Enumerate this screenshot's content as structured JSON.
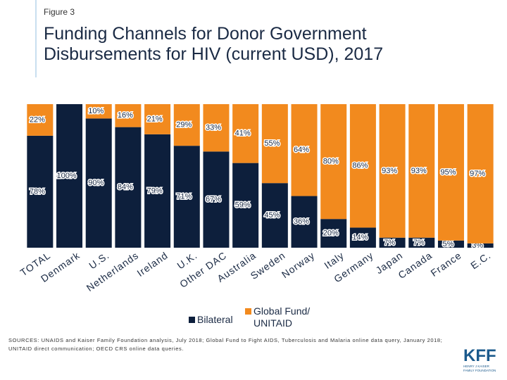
{
  "chart_data": {
    "type": "stacked_bar",
    "figure_label": "Figure 3",
    "title": "Funding Channels for Donor Government Disbursements for HIV (current USD), 2017",
    "categories": [
      "TOTAL",
      "Denmark",
      "U.S.",
      "Netherlands",
      "Ireland",
      "U.K.",
      "Other DAC",
      "Australia",
      "Sweden",
      "Norway",
      "Italy",
      "Germany",
      "Japan",
      "Canada",
      "France",
      "E.C."
    ],
    "series": [
      {
        "name": "Bilateral",
        "color": "#0d1f3c",
        "values": [
          78,
          100,
          90,
          84,
          79,
          71,
          67,
          59,
          45,
          36,
          20,
          14,
          7,
          7,
          5,
          3
        ],
        "value_labels": [
          "78%",
          "100%",
          "90%",
          "84%",
          "79%",
          "71%",
          "67%",
          "59%",
          "45%",
          "36%",
          "20%",
          "14%",
          "7%",
          "7%",
          "5%",
          "3%"
        ]
      },
      {
        "name": "Global Fund/ UNITAID",
        "color": "#f28a1e",
        "values": [
          22,
          0,
          10,
          16,
          21,
          29,
          33,
          41,
          55,
          64,
          80,
          86,
          93,
          93,
          95,
          97
        ],
        "value_labels": [
          "22%",
          null,
          "10%",
          "16%",
          "21%",
          "29%",
          "33%",
          "41%",
          "55%",
          "64%",
          "80%",
          "86%",
          "93%",
          "93%",
          "95%",
          "97%"
        ]
      }
    ],
    "ylim": [
      0,
      100
    ],
    "source": "SOURCES: UNAIDS and Kaiser Family Foundation analysis, July 2018; Global Fund to Fight AIDS, Tuberculosis and Malaria online data query, January 2018; UNITAID direct communication; OECD CRS online data queries.",
    "logo": {
      "name": "KFF",
      "subtitle": "HENRY J KAISER FAMILY FOUNDATION"
    }
  }
}
